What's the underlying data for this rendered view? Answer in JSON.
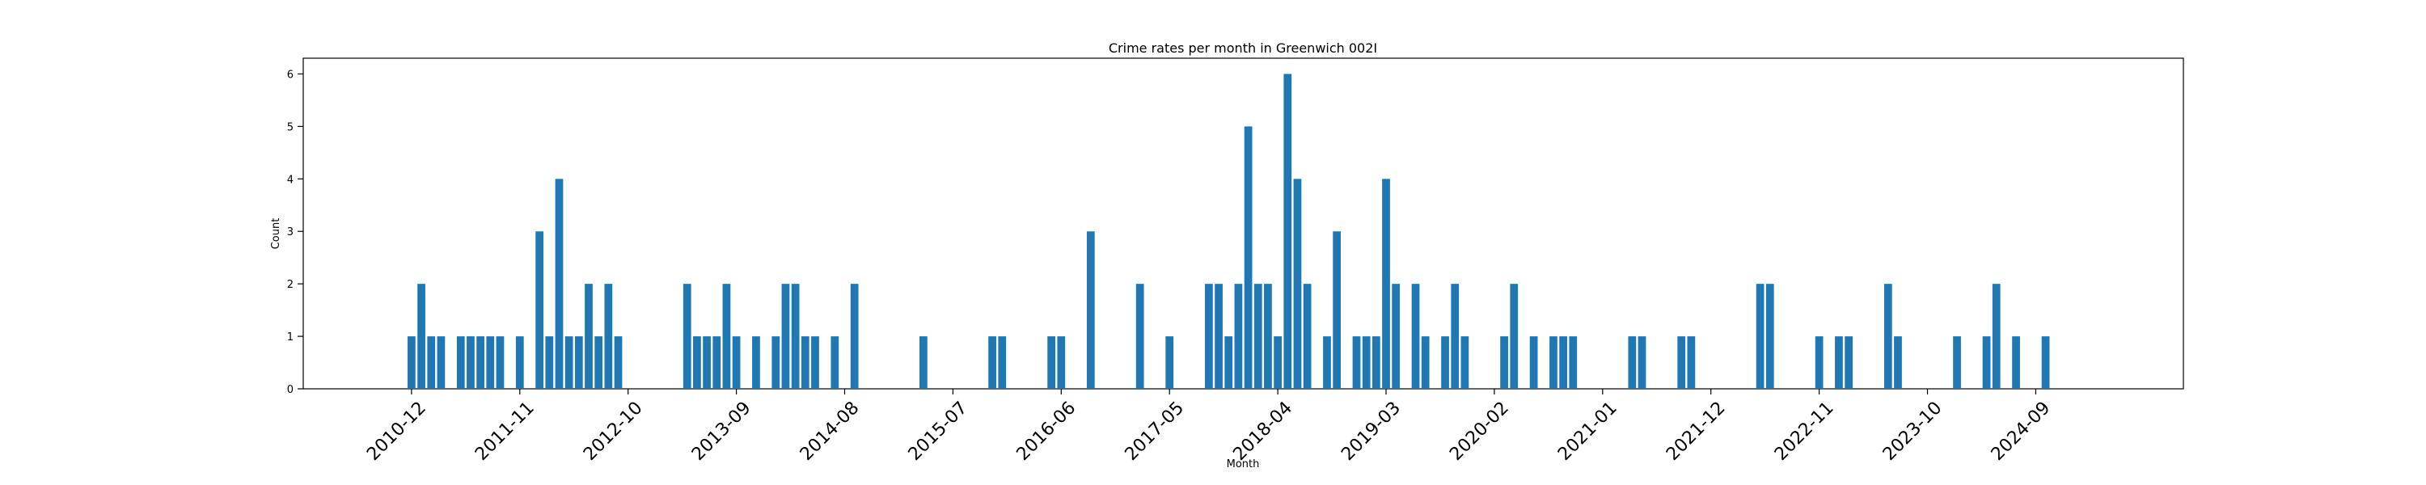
{
  "chart_data": {
    "type": "bar",
    "title": "Crime rates per month in Greenwich 002I",
    "xlabel": "Month",
    "ylabel": "Count",
    "ylim": [
      0,
      6.3
    ],
    "y_ticks": [
      0,
      1,
      2,
      3,
      4,
      5,
      6
    ],
    "x_tick_labels": [
      "2010-12",
      "2011-11",
      "2012-10",
      "2013-09",
      "2014-08",
      "2015-07",
      "2016-06",
      "2017-05",
      "2018-04",
      "2019-03",
      "2020-02",
      "2021-01",
      "2021-12",
      "2022-11",
      "2023-10",
      "2024-09"
    ],
    "x_range": [
      "2010-01",
      "2025-12"
    ],
    "bar_color": "#1f77b4",
    "grid": false,
    "legend": "none",
    "x": [
      "2010-12",
      "2011-01",
      "2011-02",
      "2011-03",
      "2011-05",
      "2011-06",
      "2011-07",
      "2011-08",
      "2011-09",
      "2011-11",
      "2012-01",
      "2012-02",
      "2012-03",
      "2012-04",
      "2012-05",
      "2012-06",
      "2012-07",
      "2012-08",
      "2012-09",
      "2013-04",
      "2013-05",
      "2013-06",
      "2013-07",
      "2013-08",
      "2013-09",
      "2013-11",
      "2014-01",
      "2014-02",
      "2014-03",
      "2014-04",
      "2014-05",
      "2014-07",
      "2014-09",
      "2015-04",
      "2015-11",
      "2015-12",
      "2016-05",
      "2016-06",
      "2016-09",
      "2017-02",
      "2017-05",
      "2017-09",
      "2017-10",
      "2017-11",
      "2017-12",
      "2018-01",
      "2018-02",
      "2018-03",
      "2018-04",
      "2018-05",
      "2018-06",
      "2018-07",
      "2018-09",
      "2018-10",
      "2018-12",
      "2019-01",
      "2019-02",
      "2019-03",
      "2019-04",
      "2019-06",
      "2019-07",
      "2019-09",
      "2019-10",
      "2019-11",
      "2020-03",
      "2020-04",
      "2020-06",
      "2020-08",
      "2020-09",
      "2020-10",
      "2021-04",
      "2021-05",
      "2021-09",
      "2021-10",
      "2022-05",
      "2022-06",
      "2022-11",
      "2023-01",
      "2023-02",
      "2023-06",
      "2023-07",
      "2024-01",
      "2024-04",
      "2024-05",
      "2024-07",
      "2024-10"
    ],
    "values": [
      1,
      2,
      1,
      1,
      1,
      1,
      1,
      1,
      1,
      1,
      3,
      1,
      4,
      1,
      1,
      2,
      1,
      2,
      1,
      2,
      1,
      1,
      1,
      2,
      1,
      1,
      1,
      2,
      2,
      1,
      1,
      1,
      2,
      1,
      1,
      1,
      1,
      1,
      3,
      2,
      1,
      2,
      2,
      1,
      2,
      5,
      2,
      2,
      1,
      6,
      4,
      2,
      1,
      3,
      1,
      1,
      1,
      4,
      2,
      2,
      1,
      1,
      2,
      1,
      1,
      2,
      1,
      1,
      1,
      1,
      1,
      1,
      1,
      1,
      2,
      2,
      1,
      1,
      1,
      2,
      1,
      1,
      1,
      2,
      1,
      1
    ]
  }
}
